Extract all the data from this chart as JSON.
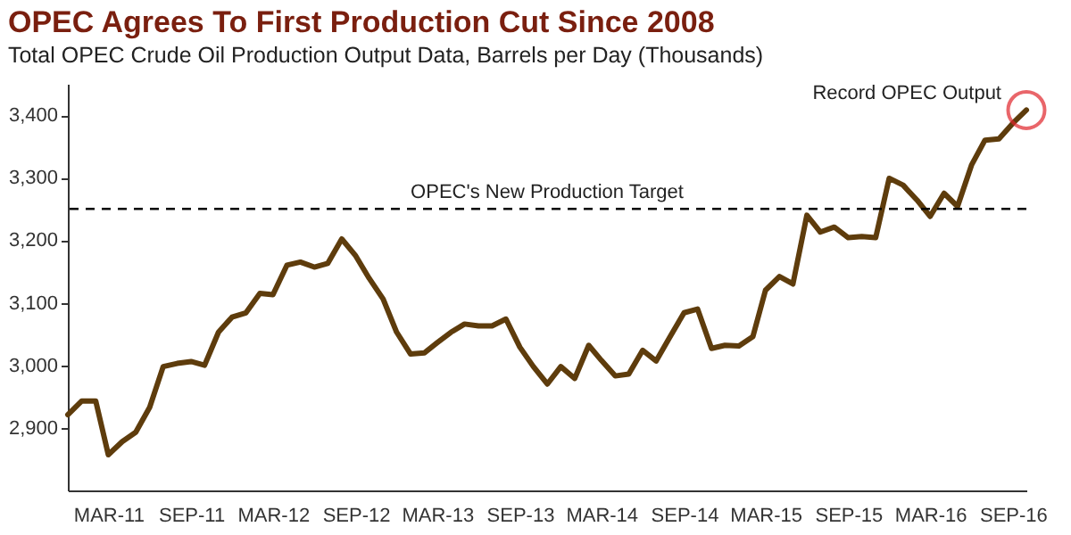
{
  "chart_data": {
    "type": "line",
    "title": "OPEC Agrees To First Production Cut Since 2008",
    "subtitle": "Total OPEC Crude Oil Production Output Data, Barrels per Day (Thousands)",
    "x": [
      "2010-12",
      "2011-01",
      "2011-02",
      "2011-03",
      "2011-04",
      "2011-05",
      "2011-06",
      "2011-07",
      "2011-08",
      "2011-09",
      "2011-10",
      "2011-11",
      "2011-12",
      "2012-01",
      "2012-02",
      "2012-03",
      "2012-04",
      "2012-05",
      "2012-06",
      "2012-07",
      "2012-08",
      "2012-09",
      "2012-10",
      "2012-11",
      "2012-12",
      "2013-01",
      "2013-02",
      "2013-03",
      "2013-04",
      "2013-05",
      "2013-06",
      "2013-07",
      "2013-08",
      "2013-09",
      "2013-10",
      "2013-11",
      "2013-12",
      "2014-01",
      "2014-02",
      "2014-03",
      "2014-04",
      "2014-05",
      "2014-06",
      "2014-07",
      "2014-08",
      "2014-09",
      "2014-10",
      "2014-11",
      "2014-12",
      "2015-01",
      "2015-02",
      "2015-03",
      "2015-04",
      "2015-05",
      "2015-06",
      "2015-07",
      "2015-08",
      "2015-09",
      "2015-10",
      "2015-11",
      "2015-12",
      "2016-01",
      "2016-02",
      "2016-03",
      "2016-04",
      "2016-05",
      "2016-06",
      "2016-07",
      "2016-08",
      "2016-09",
      "2016-10"
    ],
    "series": [
      {
        "color": "#5e3c0c",
        "values": [
          2921,
          2943,
          2943,
          2857,
          2878,
          2893,
          2933,
          2998,
          3003,
          3006,
          3000,
          3053,
          3077,
          3084,
          3115,
          3113,
          3160,
          3165,
          3157,
          3163,
          3202,
          3175,
          3139,
          3106,
          3053,
          3018,
          3020,
          3036,
          3053,
          3066,
          3063,
          3063,
          3074,
          3029,
          2998,
          2970,
          2998,
          2979,
          3032,
          3008,
          2983,
          2986,
          3024,
          3007,
          3046,
          3084,
          3090,
          3027,
          3032,
          3031,
          3046,
          3120,
          3142,
          3130,
          3240,
          3213,
          3221,
          3204,
          3206,
          3204,
          3299,
          3288,
          3264,
          3238,
          3275,
          3254,
          3320,
          3360,
          3362,
          3387,
          3408
        ]
      }
    ],
    "xlim": [
      "2010-12",
      "2016-10"
    ],
    "xticks": [
      {
        "value": "2011-03",
        "label": "MAR-11"
      },
      {
        "value": "2011-09",
        "label": "SEP-11"
      },
      {
        "value": "2012-03",
        "label": "MAR-12"
      },
      {
        "value": "2012-09",
        "label": "SEP-12"
      },
      {
        "value": "2013-03",
        "label": "MAR-13"
      },
      {
        "value": "2013-09",
        "label": "SEP-13"
      },
      {
        "value": "2014-03",
        "label": "MAR-14"
      },
      {
        "value": "2014-09",
        "label": "SEP-14"
      },
      {
        "value": "2015-03",
        "label": "MAR-15"
      },
      {
        "value": "2015-09",
        "label": "SEP-15"
      },
      {
        "value": "2016-03",
        "label": "MAR-16"
      },
      {
        "value": "2016-09",
        "label": "SEP-16"
      }
    ],
    "ylim": [
      2800,
      3450
    ],
    "yticks": [
      {
        "value": 2900,
        "label": "2,900"
      },
      {
        "value": 3000,
        "label": "3,000"
      },
      {
        "value": 3100,
        "label": "3,100"
      },
      {
        "value": 3200,
        "label": "3,200"
      },
      {
        "value": 3300,
        "label": "3,300"
      },
      {
        "value": 3400,
        "label": "3,400"
      }
    ],
    "ref_lines": [
      {
        "axis": "y",
        "value": 3250,
        "label": "OPEC's New Production Target",
        "color": "#000000",
        "line_style": "dashed"
      }
    ],
    "annotations": [
      {
        "text": "Record OPEC Output",
        "x": "2016-10",
        "y": 3408
      }
    ],
    "grid": false,
    "marker": "none",
    "line_style": "solid"
  }
}
